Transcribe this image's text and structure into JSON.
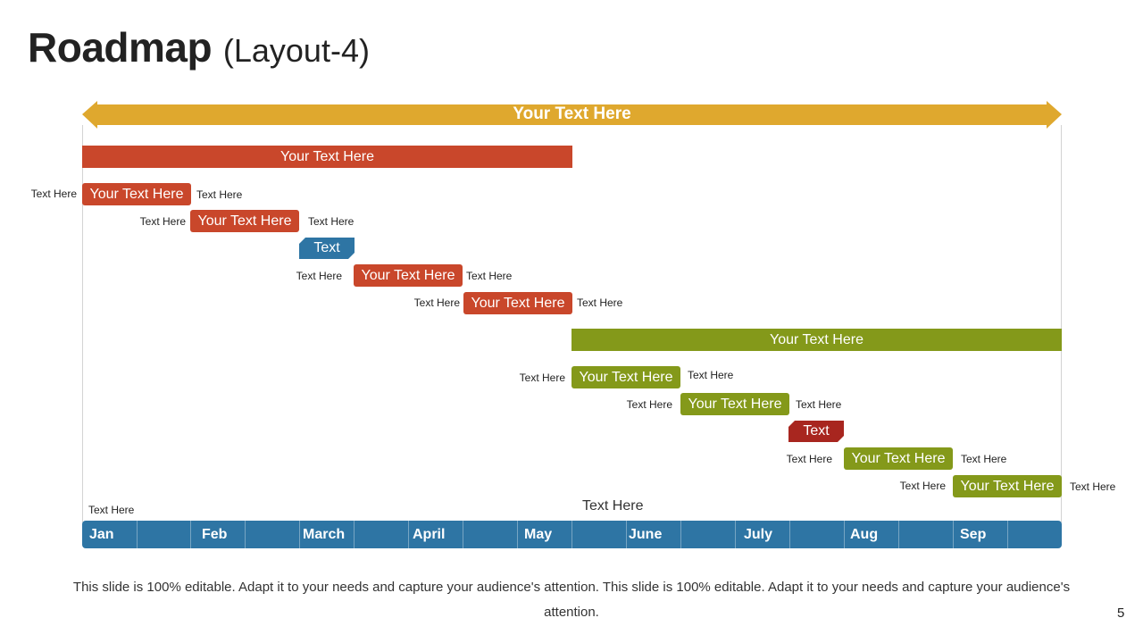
{
  "title": {
    "main": "Roadmap",
    "sub": "(Layout-4)"
  },
  "banner": {
    "label": "Your Text Here",
    "color": "#dfa82e"
  },
  "phases": {
    "first": {
      "label": "Your Text Here",
      "color": "#c9472b"
    },
    "second": {
      "label": "Your Text Here",
      "color": "#84991a"
    }
  },
  "tasks": {
    "t1": {
      "label": "Your Text Here",
      "left_note": "Text Here",
      "right_note": "Text Here"
    },
    "t2": {
      "label": "Your Text Here",
      "left_note": "Text Here",
      "right_note": "Text Here"
    },
    "milestone1": {
      "label": "Text",
      "color": "#2e75a4"
    },
    "t3": {
      "label": "Your Text Here",
      "left_note": "Text Here",
      "right_note": "Text Here"
    },
    "t4": {
      "label": "Your Text Here",
      "left_note": "Text Here",
      "right_note": "Text Here"
    },
    "t5": {
      "label": "Your Text Here",
      "left_note": "Text Here",
      "right_note": "Text Here"
    },
    "t6": {
      "label": "Your Text Here",
      "left_note": "Text Here",
      "right_note": "Text Here"
    },
    "milestone2": {
      "label": "Text",
      "color": "#a8261f"
    },
    "t7": {
      "label": "Your Text Here",
      "left_note": "Text Here",
      "right_note": "Text Here"
    },
    "t8": {
      "label": "Your Text Here",
      "left_note": "Text Here",
      "right_note": "Text Here"
    }
  },
  "timeline_notes": {
    "left": "Text Here",
    "center": "Text Here"
  },
  "months": [
    "Jan",
    "Feb",
    "March",
    "April",
    "May",
    "June",
    "July",
    "Aug",
    "Sep"
  ],
  "timeline_color": "#2e75a4",
  "footer": "This slide is 100% editable. Adapt it to your needs and capture your audience's attention. This slide is 100% editable. Adapt it to your needs and capture your audience's attention.",
  "page_number": "5"
}
